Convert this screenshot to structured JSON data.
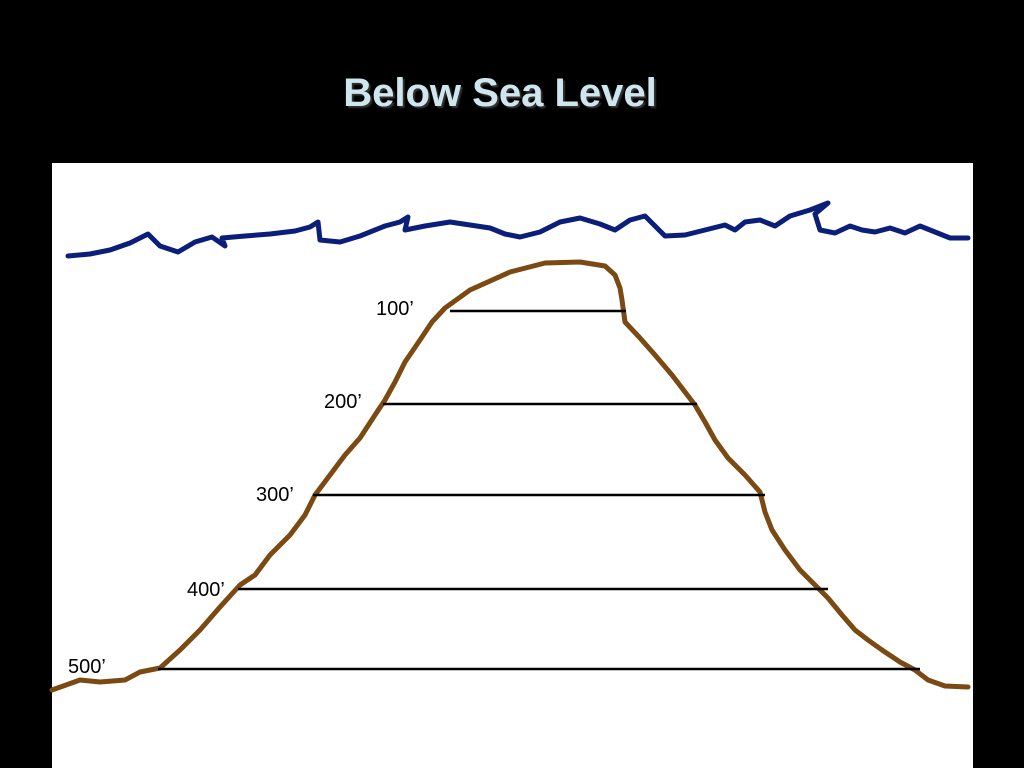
{
  "title": "Below Sea Level",
  "depth_labels": [
    "100’",
    "200’",
    "300’",
    "400’",
    "500’"
  ]
}
